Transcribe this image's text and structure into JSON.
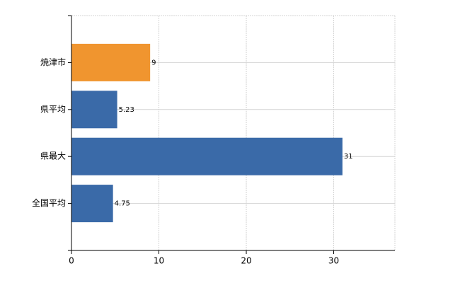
{
  "chart_data": {
    "type": "barh",
    "categories": [
      "焼津市",
      "県平均",
      "県最大",
      "全国平均"
    ],
    "values": [
      9,
      5.23,
      31,
      4.75
    ],
    "colors": [
      "#f0952f",
      "#3a6aa8",
      "#3a6aa8",
      "#3a6aa8"
    ],
    "xlim": [
      0,
      37
    ],
    "xticks": [
      0,
      10,
      20,
      30
    ],
    "grid": true
  }
}
